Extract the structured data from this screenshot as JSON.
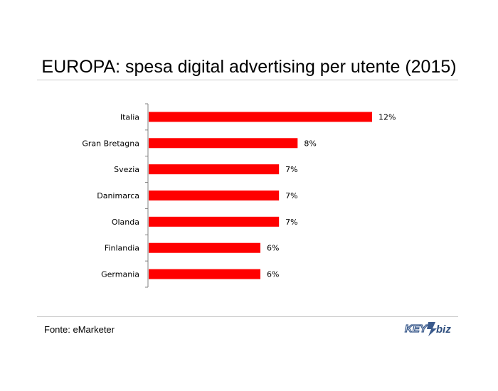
{
  "header": {
    "title": "EUROPA: spesa digital advertising per utente (2015)"
  },
  "footer": {
    "source": "Fonte: eMarketer",
    "logo_text": "KEY4biz"
  },
  "colors": {
    "bar": "#ff0000",
    "axis": "#808080",
    "text": "#000000"
  },
  "chart_data": {
    "type": "bar",
    "orientation": "horizontal",
    "categories": [
      "Italia",
      "Gran Bretagna",
      "Svezia",
      "Danimarca",
      "Olanda",
      "Finlandia",
      "Germania"
    ],
    "values": [
      12,
      8,
      7,
      7,
      7,
      6,
      6
    ],
    "labels": [
      "12%",
      "8%",
      "7%",
      "7%",
      "7%",
      "6%",
      "6%"
    ],
    "xlim": [
      0,
      12
    ],
    "grid": false,
    "legend": "none"
  }
}
